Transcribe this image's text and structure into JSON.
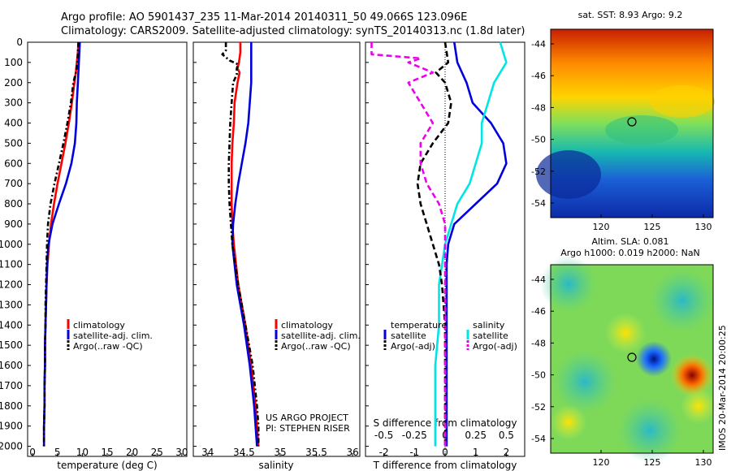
{
  "header": {
    "line1": "Argo profile: AO 5901437_235 11-Mar-2014 20140311_50 49.066S 123.096E",
    "line2": "Climatology: CARS2009. Satellite-adjusted climatology: synTS_20140313.nc (1.8d later)"
  },
  "colors": {
    "climatology": "#ff0000",
    "satellite": "#0000dd",
    "argo": "#000000",
    "sat_salinity": "#00e5e5",
    "argo_salinity": "#ee00ee"
  },
  "depth_ticks": [
    "0",
    "100",
    "200",
    "300",
    "400",
    "500",
    "600",
    "700",
    "800",
    "900",
    "1000",
    "1100",
    "1200",
    "1300",
    "1400",
    "1500",
    "1600",
    "1700",
    "1800",
    "1900",
    "2000"
  ],
  "legend": {
    "climatology": "climatology",
    "satellite": "satellite-adj. clim.",
    "argo": "Argo(..raw -QC)",
    "diff_temperature": "temperature",
    "diff_salinity": "salinity",
    "diff_satellite": "satellite",
    "diff_argo": "Argo(-adj)"
  },
  "project": {
    "line1": "US ARGO PROJECT",
    "line2": "PI: STEPHEN RISER"
  },
  "map1": {
    "title": "sat. SST: 8.93 Argo: 9.2"
  },
  "map2": {
    "title1": "Altim. SLA: 0.081",
    "title2": "Argo h1000: 0.019 h2000: NaN",
    "side_label": "IMOS 20-Mar-2014 20:00:25"
  },
  "map_y_ticks": [
    "-44",
    "-46",
    "-48",
    "-50",
    "-52",
    "-54"
  ],
  "map_x_ticks": [
    "120",
    "125",
    "130"
  ],
  "chart_data": [
    {
      "type": "line",
      "xlabel": "temperature (deg C)",
      "ylim": [
        2050,
        0
      ],
      "xlim": [
        -1,
        31
      ],
      "x_ticks": [
        "0",
        "5",
        "10",
        "15",
        "20",
        "25",
        "30"
      ],
      "series": [
        {
          "name": "climatology",
          "depth": [
            0,
            50,
            100,
            150,
            200,
            300,
            400,
            500,
            600,
            700,
            800,
            900,
            1000,
            1100,
            1200,
            1300,
            1400,
            1500,
            1600,
            1700,
            1800,
            1900,
            2000
          ],
          "values": [
            9.2,
            9.1,
            8.9,
            8.7,
            8.4,
            7.9,
            7.3,
            6.6,
            5.8,
            5.0,
            4.3,
            3.7,
            3.3,
            3.0,
            2.8,
            2.7,
            2.6,
            2.5,
            2.5,
            2.4,
            2.4,
            2.3,
            2.3
          ]
        },
        {
          "name": "satellite-adj. clim.",
          "depth": [
            0,
            50,
            100,
            150,
            200,
            300,
            400,
            500,
            600,
            700,
            800,
            900,
            1000,
            1100,
            1200,
            1300,
            1400,
            1500,
            1600,
            1700,
            1800,
            1900,
            2000
          ],
          "values": [
            9.5,
            9.4,
            9.3,
            9.2,
            9.1,
            8.9,
            8.8,
            8.5,
            7.8,
            6.7,
            5.3,
            4.0,
            3.2,
            2.9,
            2.8,
            2.7,
            2.6,
            2.5,
            2.5,
            2.4,
            2.4,
            2.3,
            2.3
          ]
        },
        {
          "name": "Argo(..raw -QC)",
          "depth": [
            0,
            50,
            100,
            150,
            200,
            300,
            400,
            500,
            600,
            700,
            800,
            900,
            1000,
            1100,
            1200,
            1300,
            1400,
            1500,
            1600,
            1700,
            1800,
            1900,
            2000
          ],
          "values": [
            9.2,
            9.1,
            9.0,
            8.7,
            8.2,
            7.7,
            7.0,
            6.2,
            5.3,
            4.4,
            3.6,
            3.1,
            2.9,
            2.8,
            2.7,
            2.6,
            2.6,
            2.5,
            2.5,
            2.4,
            2.4,
            2.3,
            2.3
          ]
        }
      ]
    },
    {
      "type": "line",
      "xlabel": "salinity",
      "ylim": [
        2050,
        0
      ],
      "xlim": [
        33.8,
        36.1
      ],
      "x_ticks": [
        "34",
        "34.5",
        "35",
        "35.5",
        "36"
      ],
      "series": [
        {
          "name": "climatology",
          "depth": [
            0,
            50,
            100,
            130,
            150,
            200,
            300,
            400,
            500,
            600,
            700,
            800,
            900,
            1000,
            1200,
            1400,
            1600,
            1800,
            2000
          ],
          "values": [
            34.45,
            34.45,
            34.43,
            34.41,
            34.44,
            34.41,
            34.37,
            34.36,
            34.34,
            34.33,
            34.33,
            34.33,
            34.34,
            34.36,
            34.42,
            34.52,
            34.6,
            34.66,
            34.7
          ]
        },
        {
          "name": "satellite-adj. clim.",
          "depth": [
            0,
            50,
            100,
            150,
            200,
            300,
            400,
            500,
            600,
            700,
            800,
            900,
            1000,
            1200,
            1400,
            1600,
            1800,
            2000
          ],
          "values": [
            34.6,
            34.6,
            34.6,
            34.6,
            34.6,
            34.58,
            34.56,
            34.52,
            34.47,
            34.42,
            34.38,
            34.35,
            34.34,
            34.4,
            34.5,
            34.58,
            34.64,
            34.68
          ]
        },
        {
          "name": "Argo(..raw -QC)",
          "depth": [
            0,
            40,
            60,
            90,
            110,
            130,
            160,
            200,
            300,
            400,
            500,
            600,
            700,
            800,
            900,
            1000,
            1200,
            1400,
            1600,
            1800,
            1900,
            2000
          ],
          "values": [
            34.25,
            34.25,
            34.2,
            34.3,
            34.42,
            34.4,
            34.4,
            34.35,
            34.33,
            34.31,
            34.3,
            34.29,
            34.29,
            34.3,
            34.32,
            34.34,
            34.42,
            34.52,
            34.62,
            34.68,
            34.7,
            34.7
          ]
        }
      ]
    },
    {
      "type": "line",
      "xlabel": "T difference from climatology",
      "xlabel_top": "S difference from climatology",
      "ylim": [
        2050,
        0
      ],
      "xlim": [
        -2.6,
        2.6
      ],
      "x_ticks": [
        "-2",
        "-1",
        "0",
        "1",
        "2"
      ],
      "x_ticks_top": [
        "-0.5",
        "-0.25",
        "0",
        "0.25",
        "0.5"
      ],
      "series": [
        {
          "name": "temperature satellite",
          "depth": [
            0,
            100,
            200,
            300,
            400,
            500,
            600,
            700,
            800,
            900,
            1000,
            1100,
            1200,
            1400,
            1600,
            1800,
            2000
          ],
          "values": [
            0.3,
            0.4,
            0.7,
            0.9,
            1.5,
            1.9,
            2.0,
            1.7,
            1.0,
            0.3,
            0.1,
            0.05,
            0.05,
            0.05,
            0.05,
            0.05,
            0.05
          ]
        },
        {
          "name": "salinity satellite",
          "depth": [
            0,
            100,
            200,
            300,
            400,
            500,
            600,
            700,
            800,
            900,
            1000,
            1200,
            1400,
            1600,
            1800,
            2000
          ],
          "values": [
            0.45,
            0.5,
            0.4,
            0.35,
            0.3,
            0.3,
            0.25,
            0.2,
            0.1,
            0.05,
            0.0,
            -0.05,
            -0.05,
            -0.08,
            -0.08,
            -0.08
          ]
        },
        {
          "name": "temperature Argo(-adj)",
          "depth": [
            0,
            100,
            150,
            200,
            300,
            400,
            500,
            600,
            700,
            800,
            900,
            1000,
            1100,
            1200,
            1400,
            1600,
            1800,
            2000
          ],
          "values": [
            0.0,
            0.1,
            -0.3,
            0.0,
            0.2,
            0.1,
            -0.4,
            -0.8,
            -0.9,
            -0.8,
            -0.6,
            -0.4,
            -0.2,
            -0.1,
            0.0,
            0.0,
            0.0,
            0.0
          ]
        },
        {
          "name": "salinity Argo(-adj)",
          "depth": [
            0,
            60,
            80,
            100,
            150,
            200,
            300,
            400,
            500,
            600,
            700,
            800,
            900,
            1000,
            1200,
            1400,
            1600,
            1800,
            2000
          ],
          "values": [
            -0.6,
            -0.6,
            -0.2,
            -0.3,
            -0.1,
            -0.3,
            -0.2,
            -0.1,
            -0.2,
            -0.2,
            -0.15,
            -0.05,
            0.0,
            0.0,
            0.0,
            0.0,
            0.0,
            0.0,
            0.0
          ]
        }
      ]
    }
  ]
}
